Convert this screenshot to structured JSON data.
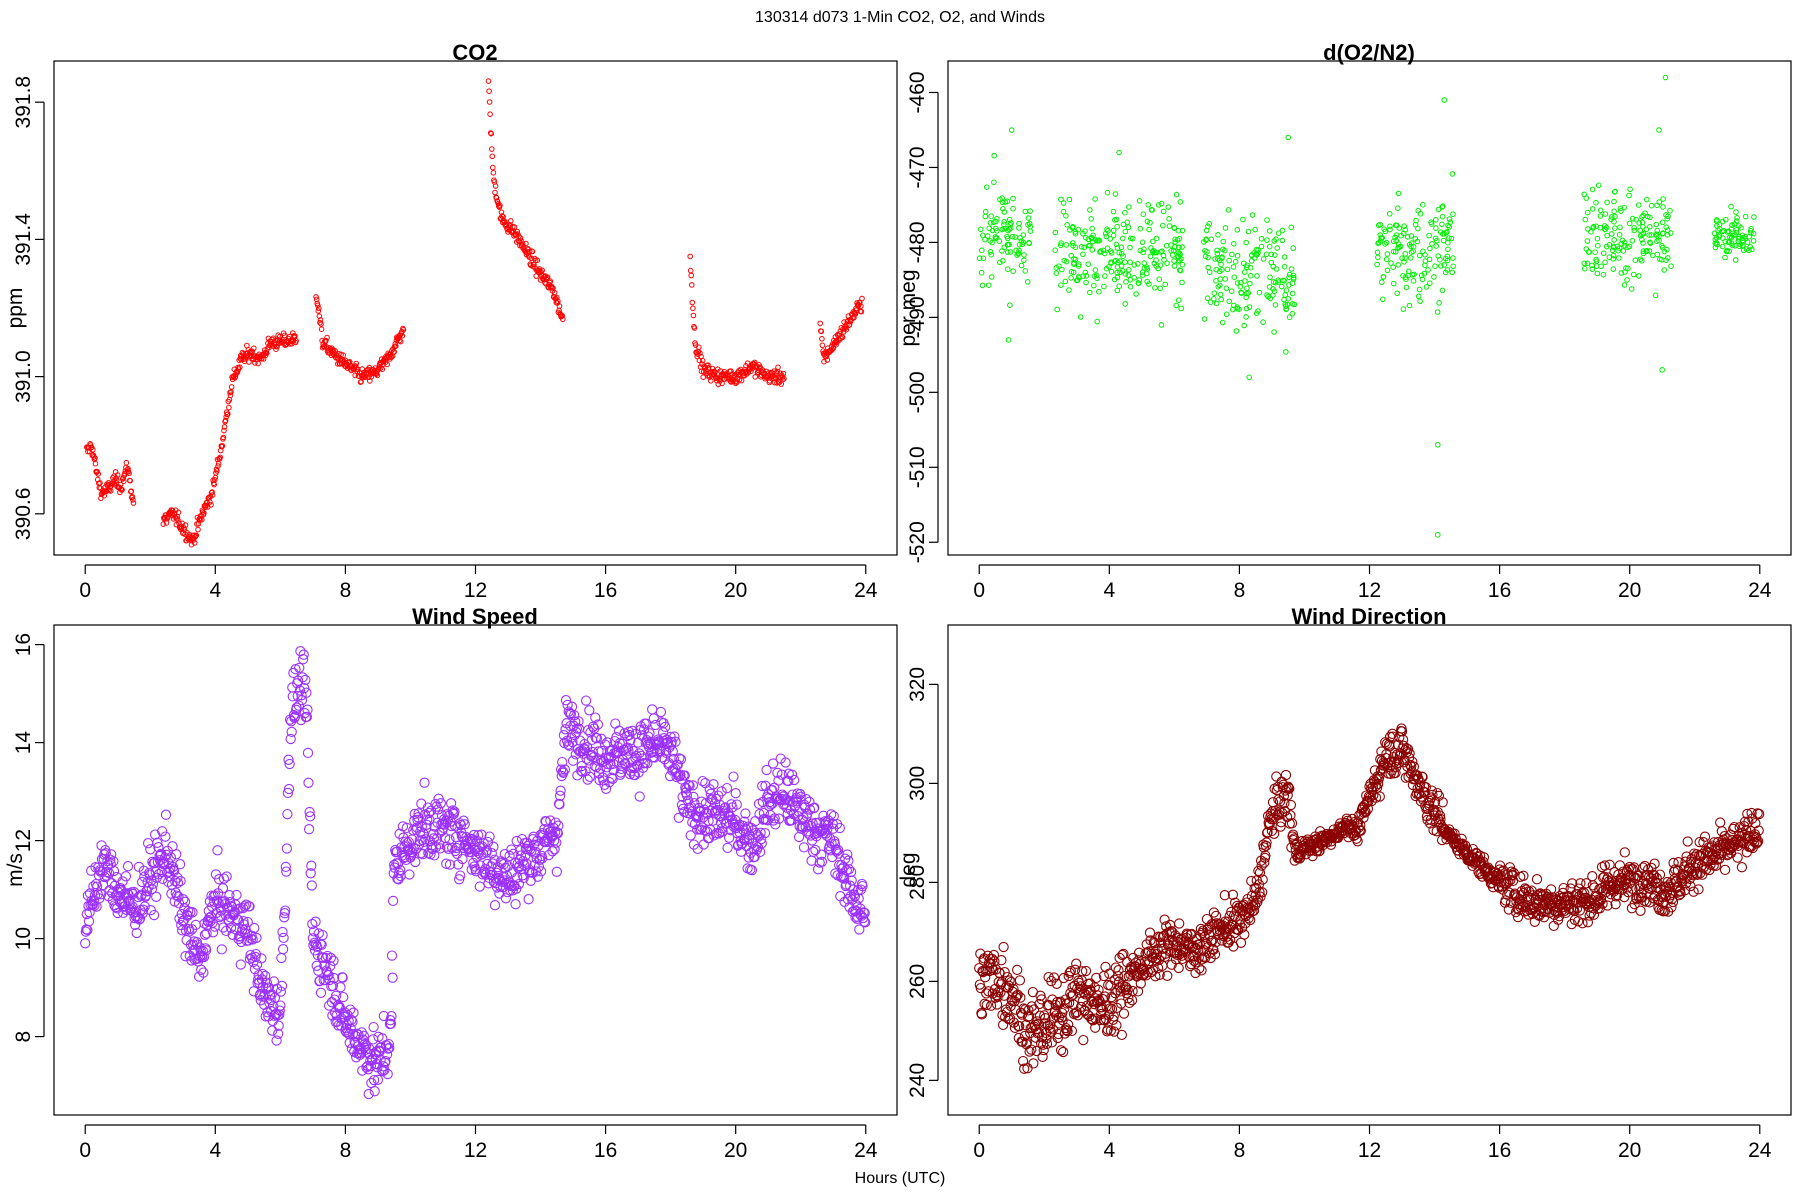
{
  "figure": {
    "title": "130314   d073   1-Min CO2, O2, and Winds",
    "xlabel": "Hours (UTC)"
  },
  "chart_data": [
    {
      "type": "scatter",
      "title": "CO2",
      "ylabel": "ppm",
      "xlim": [
        -0.96,
        24.96
      ],
      "ylim": [
        390.48,
        391.92
      ],
      "xticks": [
        0,
        4,
        8,
        12,
        16,
        20,
        24
      ],
      "yticks": [
        390.6,
        391.0,
        391.4,
        391.8
      ],
      "color": "#ff0000",
      "marker": "small-circle",
      "segments": [
        {
          "x_start": 0.05,
          "x_end": 1.5,
          "points": [
            [
              0.05,
              390.78
            ],
            [
              0.2,
              390.8
            ],
            [
              0.35,
              390.72
            ],
            [
              0.5,
              390.66
            ],
            [
              0.7,
              390.67
            ],
            [
              0.9,
              390.7
            ],
            [
              1.1,
              390.68
            ],
            [
              1.3,
              390.74
            ],
            [
              1.5,
              390.62
            ]
          ]
        },
        {
          "x_start": 2.4,
          "x_end": 3.9,
          "points": [
            [
              2.4,
              390.58
            ],
            [
              2.7,
              390.6
            ],
            [
              3.0,
              390.56
            ],
            [
              3.3,
              390.52
            ],
            [
              3.6,
              390.6
            ],
            [
              3.9,
              390.66
            ]
          ]
        },
        {
          "x_start": 3.9,
          "x_end": 6.5,
          "points": [
            [
              3.9,
              390.66
            ],
            [
              4.2,
              390.8
            ],
            [
              4.5,
              390.98
            ],
            [
              4.8,
              391.05
            ],
            [
              5.1,
              391.07
            ],
            [
              5.4,
              391.05
            ],
            [
              5.7,
              391.1
            ],
            [
              6.0,
              391.1
            ],
            [
              6.5,
              391.11
            ]
          ]
        },
        {
          "x_start": 7.1,
          "x_end": 9.8,
          "points": [
            [
              7.1,
              391.25
            ],
            [
              7.3,
              391.1
            ],
            [
              7.7,
              391.06
            ],
            [
              8.1,
              391.03
            ],
            [
              8.5,
              391.0
            ],
            [
              8.9,
              391.01
            ],
            [
              9.3,
              391.05
            ],
            [
              9.8,
              391.14
            ]
          ]
        },
        {
          "x_start": 12.4,
          "x_end": 14.7,
          "points": [
            [
              12.4,
              391.85
            ],
            [
              12.55,
              391.58
            ],
            [
              12.8,
              391.46
            ],
            [
              13.2,
              391.42
            ],
            [
              13.6,
              391.36
            ],
            [
              14.0,
              391.3
            ],
            [
              14.4,
              391.25
            ],
            [
              14.7,
              391.16
            ]
          ]
        },
        {
          "x_start": 18.6,
          "x_end": 21.5,
          "points": [
            [
              18.6,
              391.35
            ],
            [
              18.75,
              391.1
            ],
            [
              19.0,
              391.02
            ],
            [
              19.5,
              391.0
            ],
            [
              20.0,
              391.0
            ],
            [
              20.5,
              391.03
            ],
            [
              21.0,
              391.0
            ],
            [
              21.5,
              391.0
            ]
          ]
        },
        {
          "x_start": 22.6,
          "x_end": 23.9,
          "points": [
            [
              22.6,
              391.15
            ],
            [
              22.7,
              391.05
            ],
            [
              23.9,
              391.22
            ]
          ]
        }
      ]
    },
    {
      "type": "scatter",
      "title": "d(O2/N2)",
      "ylabel": "per meg",
      "xlim": [
        -0.96,
        24.96
      ],
      "ylim": [
        -521.7,
        -455.8
      ],
      "xticks": [
        0,
        4,
        8,
        12,
        16,
        20,
        24
      ],
      "yticks": [
        -520,
        -510,
        -500,
        -490,
        -480,
        -470,
        -460
      ],
      "color": "#00ee00",
      "marker": "small-circle",
      "segments": [
        {
          "x_start": 0.0,
          "x_end": 1.6,
          "center": -479,
          "spread": 6,
          "outliers": [
            [
              1.0,
              -465
            ],
            [
              0.9,
              -493
            ]
          ]
        },
        {
          "x_start": 2.3,
          "x_end": 6.3,
          "center": -481,
          "spread": 7,
          "outliers": [
            [
              4.3,
              -468
            ],
            [
              5.6,
              -491
            ]
          ]
        },
        {
          "x_start": 6.9,
          "x_end": 9.7,
          "center": -484,
          "spread": 7,
          "outliers": [
            [
              8.3,
              -498
            ],
            [
              9.5,
              -466
            ]
          ]
        },
        {
          "x_start": 12.2,
          "x_end": 14.6,
          "center": -481,
          "spread": 7,
          "outliers": [
            [
              14.1,
              -519
            ],
            [
              14.1,
              -507
            ],
            [
              14.3,
              -461
            ]
          ]
        },
        {
          "x_start": 18.6,
          "x_end": 21.3,
          "center": -479,
          "spread": 6,
          "outliers": [
            [
              21.0,
              -497
            ],
            [
              21.1,
              -458
            ],
            [
              20.9,
              -465
            ]
          ]
        },
        {
          "x_start": 22.6,
          "x_end": 23.9,
          "center": -479,
          "spread": 3,
          "outliers": []
        }
      ]
    },
    {
      "type": "scatter",
      "title": "Wind Speed",
      "ylabel": "m/s",
      "xlim": [
        -0.96,
        24.96
      ],
      "ylim": [
        6.4,
        16.4
      ],
      "xticks": [
        0,
        4,
        8,
        12,
        16,
        20,
        24
      ],
      "yticks": [
        8,
        10,
        12,
        14,
        16
      ],
      "color": "#9b30ff",
      "marker": "circle",
      "trend": [
        [
          0,
          10.2
        ],
        [
          0.5,
          11.5
        ],
        [
          1,
          11.0
        ],
        [
          1.5,
          10.6
        ],
        [
          2,
          11.2
        ],
        [
          2.5,
          11.8
        ],
        [
          3,
          10.5
        ],
        [
          3.5,
          9.5
        ],
        [
          4,
          10.8
        ],
        [
          4.5,
          10.5
        ],
        [
          5,
          10.2
        ],
        [
          5.5,
          8.8
        ],
        [
          6,
          8.5
        ],
        [
          6.2,
          12.0
        ],
        [
          6.3,
          14.5
        ],
        [
          6.6,
          15.2
        ],
        [
          6.8,
          14.8
        ],
        [
          7.0,
          10.0
        ],
        [
          7.5,
          9.3
        ],
        [
          8,
          8.3
        ],
        [
          8.5,
          7.8
        ],
        [
          9,
          7.4
        ],
        [
          9.4,
          8.0
        ],
        [
          9.5,
          11.5
        ],
        [
          10,
          12.0
        ],
        [
          10.5,
          12.3
        ],
        [
          11,
          12.2
        ],
        [
          11.5,
          12.1
        ],
        [
          12,
          11.8
        ],
        [
          12.5,
          11.5
        ],
        [
          13,
          11.2
        ],
        [
          13.5,
          11.6
        ],
        [
          14,
          11.8
        ],
        [
          14.5,
          12.2
        ],
        [
          14.8,
          14.3
        ],
        [
          15.5,
          14.0
        ],
        [
          16,
          13.7
        ],
        [
          16.5,
          13.8
        ],
        [
          17,
          13.8
        ],
        [
          17.5,
          14.0
        ],
        [
          18,
          13.8
        ],
        [
          18.5,
          12.7
        ],
        [
          19,
          12.5
        ],
        [
          19.5,
          12.5
        ],
        [
          20,
          12.4
        ],
        [
          20.5,
          11.9
        ],
        [
          21,
          12.8
        ],
        [
          21.5,
          13.0
        ],
        [
          22,
          12.5
        ],
        [
          22.5,
          12.2
        ],
        [
          23,
          12.0
        ],
        [
          23.5,
          11.0
        ],
        [
          24,
          10.5
        ]
      ]
    },
    {
      "type": "scatter",
      "title": "Wind Direction",
      "ylabel": "deg",
      "xlim": [
        -0.96,
        24.96
      ],
      "ylim": [
        233,
        332
      ],
      "xticks": [
        0,
        4,
        8,
        12,
        16,
        20,
        24
      ],
      "yticks": [
        240,
        260,
        280,
        300,
        320
      ],
      "color": "#8b0000",
      "marker": "circle",
      "trend": [
        [
          0,
          259
        ],
        [
          0.5,
          261
        ],
        [
          1,
          258
        ],
        [
          1.5,
          249
        ],
        [
          2,
          251
        ],
        [
          2.5,
          254
        ],
        [
          3,
          258
        ],
        [
          3.5,
          255
        ],
        [
          4,
          256
        ],
        [
          4.5,
          260
        ],
        [
          5,
          263
        ],
        [
          5.5,
          266
        ],
        [
          6,
          268
        ],
        [
          6.5,
          266
        ],
        [
          7,
          268
        ],
        [
          7.5,
          271
        ],
        [
          8,
          272
        ],
        [
          8.5,
          276
        ],
        [
          9,
          294
        ],
        [
          9.5,
          298
        ],
        [
          9.7,
          286
        ],
        [
          10,
          287
        ],
        [
          10.5,
          288
        ],
        [
          11,
          290
        ],
        [
          11.3,
          292
        ],
        [
          11.6,
          290
        ],
        [
          12,
          297
        ],
        [
          12.5,
          306
        ],
        [
          13,
          307
        ],
        [
          13.5,
          300
        ],
        [
          14,
          294
        ],
        [
          14.5,
          289
        ],
        [
          15,
          286
        ],
        [
          15.5,
          283
        ],
        [
          16,
          280
        ],
        [
          16.5,
          278
        ],
        [
          17,
          276
        ],
        [
          17.5,
          276
        ],
        [
          18,
          276
        ],
        [
          18.5,
          276
        ],
        [
          19,
          277
        ],
        [
          19.5,
          280
        ],
        [
          20,
          280
        ],
        [
          20.5,
          281
        ],
        [
          21,
          278
        ],
        [
          21.5,
          280
        ],
        [
          22,
          284
        ],
        [
          22.5,
          285
        ],
        [
          23,
          287
        ],
        [
          23.5,
          288
        ],
        [
          24,
          292
        ]
      ]
    }
  ]
}
